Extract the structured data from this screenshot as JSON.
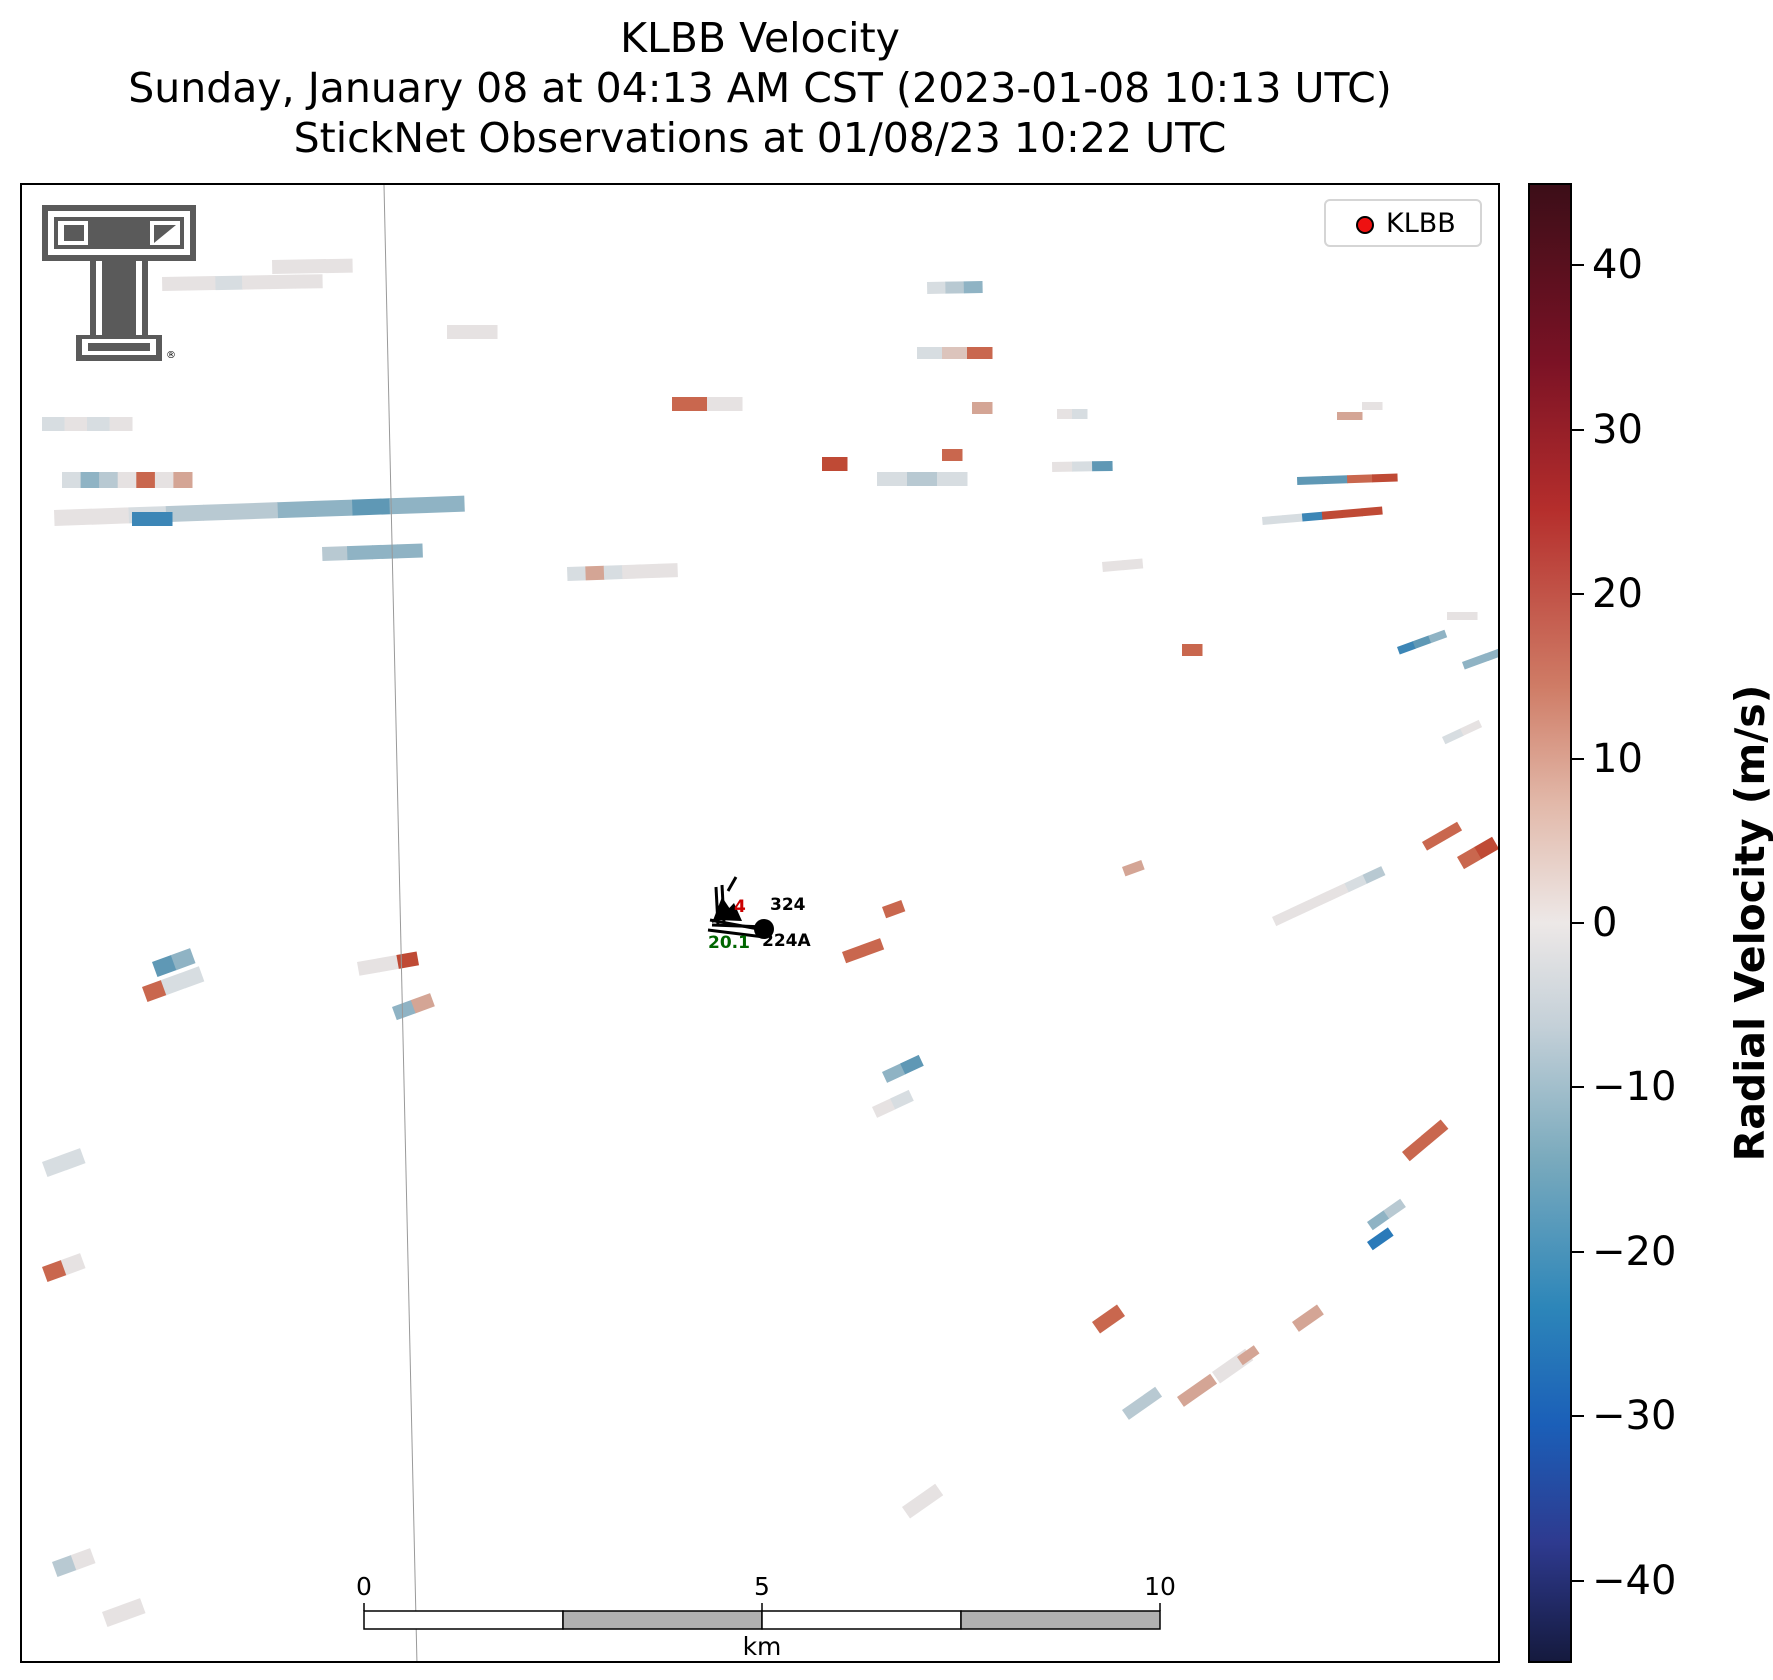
{
  "header": {
    "title": "KLBB Velocity",
    "subtitle": "Sunday, January 08 at 04:13 AM CST (2023-01-08 10:13 UTC)",
    "subtitle2": "StickNet Observations at 01/08/23 10:22 UTC"
  },
  "legend": {
    "label": "KLBB",
    "marker_color": "#ee1111"
  },
  "colorbar": {
    "label": "Radial Velocity (m/s)",
    "vmin": -45,
    "vmax": 45,
    "ticks": [
      "40",
      "30",
      "20",
      "10",
      "0",
      "−10",
      "−20",
      "−30",
      "−40"
    ],
    "tick_values": [
      40,
      30,
      20,
      10,
      0,
      -10,
      -20,
      -30,
      -40
    ],
    "colors": [
      "#3c0e18",
      "#7b1225",
      "#b52e2c",
      "#cf7c66",
      "#e2b9aa",
      "#ede8e7",
      "#c4d0d8",
      "#7aaabd",
      "#2d86b9",
      "#1b5fb8",
      "#2e3a8f",
      "#151a3e"
    ]
  },
  "scalebar": {
    "unit": "km",
    "ticks": [
      "0",
      "5",
      "10"
    ]
  },
  "stations": [
    {
      "id": "324",
      "value": "4",
      "value_color": "#cc0000"
    },
    {
      "id": "224A",
      "value": "20.1",
      "value_color": "#006600"
    }
  ],
  "logo": {
    "name": "texas-tech-double-t-logo",
    "mark": "®"
  }
}
